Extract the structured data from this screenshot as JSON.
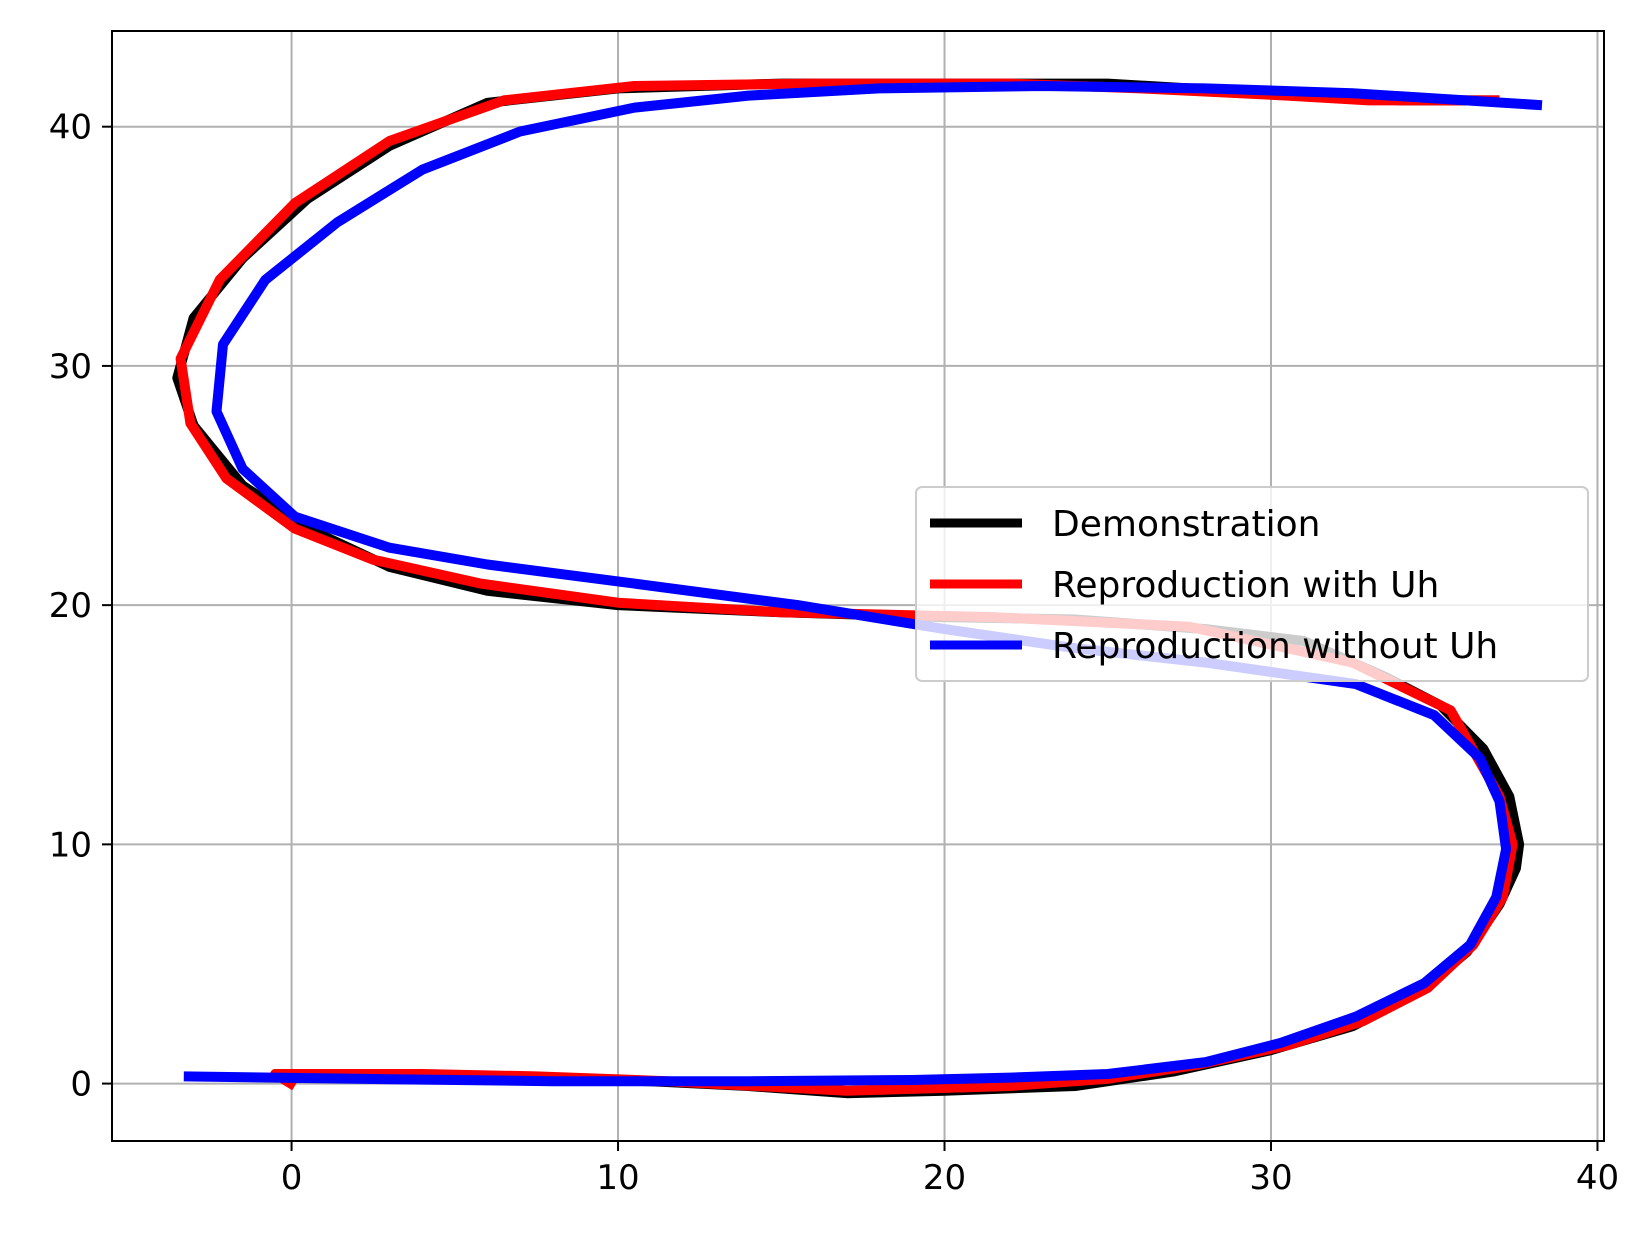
{
  "chart_data": {
    "type": "line",
    "title": "",
    "xlabel": "",
    "ylabel": "",
    "xlim": [
      -5.5,
      40.2
    ],
    "ylim": [
      -2.4,
      44
    ],
    "xticks": [
      0,
      10,
      20,
      30,
      40
    ],
    "yticks": [
      0,
      10,
      20,
      30,
      40
    ],
    "xtick_labels": [
      "0",
      "10",
      "20",
      "30",
      "40"
    ],
    "ytick_labels": [
      "0",
      "10",
      "20",
      "30",
      "40"
    ],
    "grid": true,
    "legend_position": "center-right",
    "series": [
      {
        "name": "Demonstration",
        "color": "#000000",
        "x": [
          -0.5,
          2,
          5,
          8,
          11,
          14,
          17,
          20,
          24,
          27,
          30,
          32.5,
          34.5,
          36,
          37,
          37.5,
          37.6,
          37.3,
          36.5,
          35.2,
          33.5,
          31,
          28,
          24,
          20,
          15,
          10,
          6,
          3,
          0.5,
          -1.5,
          -3,
          -3.5,
          -3,
          -1.5,
          0.5,
          3,
          6,
          10,
          15,
          20,
          25,
          30,
          34,
          37
        ],
        "y": [
          0.3,
          0.3,
          0.3,
          0.2,
          0.1,
          -0.1,
          -0.4,
          -0.3,
          -0.1,
          0.5,
          1.4,
          2.4,
          3.8,
          5.5,
          7.5,
          9.0,
          10.0,
          12.0,
          14.0,
          15.8,
          17.0,
          18.5,
          19.0,
          19.4,
          19.5,
          19.7,
          20.0,
          20.6,
          21.6,
          23.2,
          25.0,
          27.5,
          29.5,
          32.0,
          34.5,
          37.0,
          39.2,
          41.0,
          41.6,
          41.8,
          41.8,
          41.8,
          41.4,
          41.1,
          41.1
        ]
      },
      {
        "name": "Reproduction with Uh",
        "color": "#ff0000",
        "x": [
          0.1,
          -0.5,
          1.5,
          4,
          7.5,
          11.5,
          17,
          22,
          25,
          27.8,
          30.5,
          32.8,
          34.8,
          36.2,
          37.1,
          37.4,
          37,
          35.5,
          32.5,
          27.5,
          21.5,
          15,
          10,
          5.8,
          2.5,
          0.1,
          -2,
          -3.1,
          -3.4,
          -2.2,
          0.1,
          3,
          6.5,
          10.5,
          16,
          22,
          26,
          30.5,
          33,
          37
        ],
        "y": [
          -0.1,
          0.4,
          0.4,
          0.4,
          0.3,
          0.1,
          -0.3,
          -0.1,
          0.2,
          0.8,
          1.6,
          2.6,
          4.0,
          5.8,
          7.8,
          10.0,
          12.0,
          15.6,
          17.6,
          19.1,
          19.5,
          19.7,
          20.1,
          20.9,
          21.9,
          23.2,
          25.3,
          27.6,
          30.3,
          33.6,
          36.8,
          39.4,
          41.1,
          41.7,
          41.8,
          41.8,
          41.6,
          41.3,
          41.1,
          41.1
        ]
      },
      {
        "name": "Reproduction without Uh",
        "color": "#0000ff",
        "x": [
          -3.3,
          2,
          8,
          14,
          19,
          22,
          25,
          28,
          30.3,
          32.6,
          34.7,
          36.1,
          36.9,
          37.2,
          37,
          36.4,
          35,
          32.6,
          28,
          24,
          20,
          15.5,
          10.5,
          6,
          3,
          0.1,
          -1.5,
          -2.3,
          -2.1,
          -0.8,
          1.4,
          4,
          7,
          10.5,
          14,
          18,
          23,
          28,
          32.5,
          38.3
        ],
        "y": [
          0.3,
          0.2,
          0.1,
          0.1,
          0.15,
          0.25,
          0.4,
          0.9,
          1.7,
          2.8,
          4.2,
          5.8,
          7.8,
          9.8,
          11.8,
          13.6,
          15.4,
          16.7,
          17.6,
          18.2,
          19.0,
          20.0,
          20.9,
          21.7,
          22.4,
          23.7,
          25.7,
          28.1,
          30.9,
          33.6,
          36.0,
          38.2,
          39.8,
          40.8,
          41.3,
          41.6,
          41.7,
          41.6,
          41.4,
          40.9
        ]
      }
    ]
  }
}
